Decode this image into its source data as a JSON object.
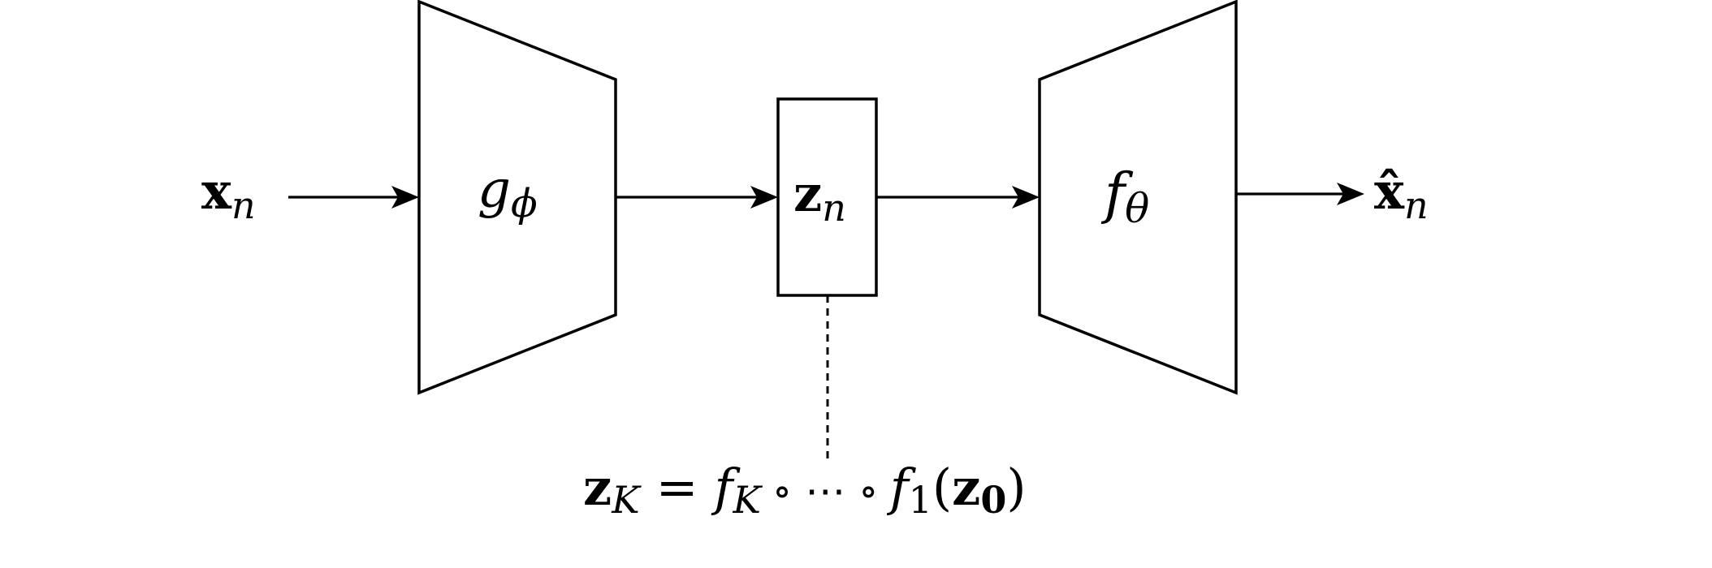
{
  "input": {
    "main": "x",
    "sub": "n"
  },
  "encoder": {
    "main": "g",
    "sub": "ϕ"
  },
  "latent": {
    "main": "z",
    "sub": "n"
  },
  "decoder": {
    "main": "f",
    "sub": "θ"
  },
  "output": {
    "main": "x̂",
    "sub": "n"
  },
  "flow": {
    "z": "z",
    "zsub": "K",
    "eq": "=",
    "f": "f",
    "fsub": "K",
    "compose": "∘ ⋯ ∘",
    "f1": "f",
    "f1sub": "1",
    "lparen": "(",
    "z0": "z",
    "z0sub": "0",
    "rparen": ")"
  }
}
